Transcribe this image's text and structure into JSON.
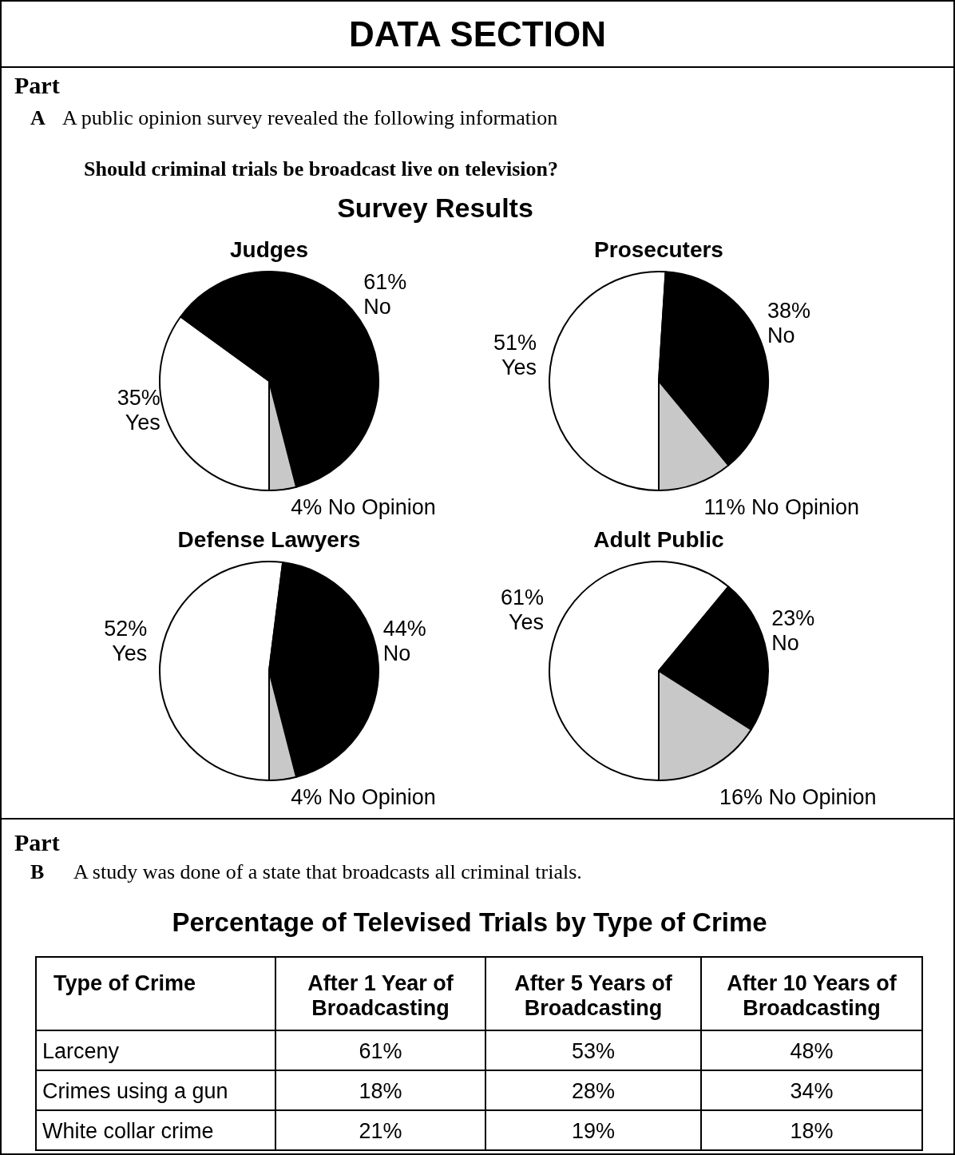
{
  "chart_data": [
    {
      "type": "pie",
      "title": "Judges",
      "categories": [
        "Yes",
        "No",
        "No Opinion"
      ],
      "values": [
        35,
        61,
        4
      ],
      "value_labels": [
        "35%",
        "61%",
        "4%"
      ],
      "colors": [
        "#ffffff",
        "#000000",
        "#c8c8c8"
      ],
      "annotations": [
        "DATA SECTION",
        "Part",
        "A",
        "A public opinion survey revealed the following information",
        "Should criminal trials be broadcast live on television?",
        "Survey Results"
      ]
    },
    {
      "type": "pie",
      "title": "Prosecuters",
      "categories": [
        "Yes",
        "No",
        "No Opinion"
      ],
      "values": [
        51,
        38,
        11
      ],
      "value_labels": [
        "51%",
        "38%",
        "11%"
      ],
      "colors": [
        "#ffffff",
        "#000000",
        "#c8c8c8"
      ]
    },
    {
      "type": "pie",
      "title": "Defense Lawyers",
      "categories": [
        "Yes",
        "No",
        "No Opinion"
      ],
      "values": [
        52,
        44,
        4
      ],
      "value_labels": [
        "52%",
        "44%",
        "4%"
      ],
      "colors": [
        "#ffffff",
        "#000000",
        "#c8c8c8"
      ]
    },
    {
      "type": "pie",
      "title": "Adult Public",
      "categories": [
        "Yes",
        "No",
        "No Opinion"
      ],
      "values": [
        61,
        23,
        16
      ],
      "value_labels": [
        "61%",
        "23%",
        "16%"
      ],
      "colors": [
        "#ffffff",
        "#000000",
        "#c8c8c8"
      ]
    },
    {
      "type": "other",
      "title": "Percentage of Televised Trials by Type of Crime",
      "ylabel": "Type of Crime",
      "categories": [
        "After 1 Year of Broadcasting",
        "After 5 Years of Broadcasting",
        "After 10 Years of Broadcasting"
      ],
      "series": [
        {
          "name": "Larceny",
          "values": [
            61,
            53,
            48
          ],
          "value_labels": [
            "61%",
            "53%",
            "48%"
          ]
        },
        {
          "name": "Crimes using a gun",
          "values": [
            18,
            28,
            34
          ],
          "value_labels": [
            "18%",
            "28%",
            "34%"
          ]
        },
        {
          "name": "White collar crime",
          "values": [
            21,
            19,
            18
          ],
          "value_labels": [
            "21%",
            "19%",
            "18%"
          ]
        }
      ],
      "annotations": [
        "Part",
        "B",
        "A study was done of a state that broadcasts all criminal trials."
      ]
    }
  ]
}
